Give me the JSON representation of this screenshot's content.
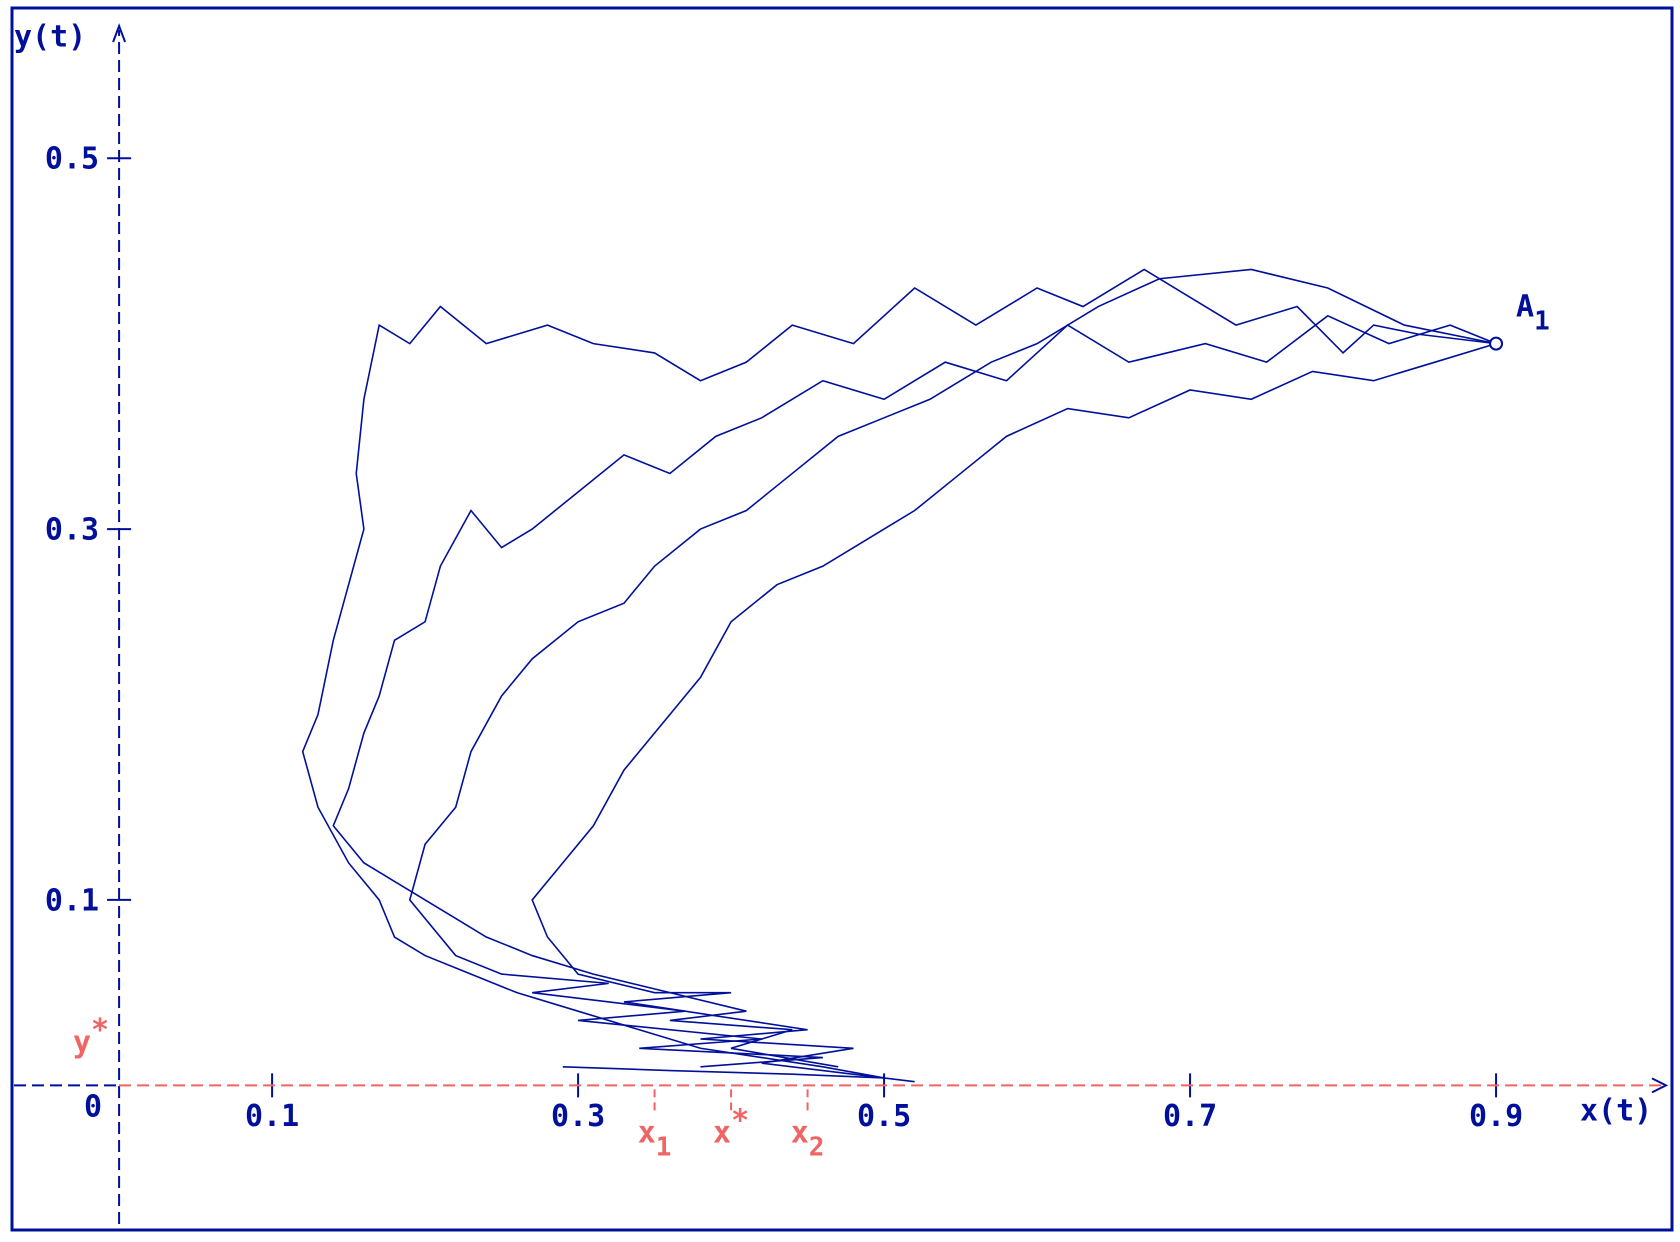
{
  "chart_data": {
    "type": "line",
    "x_label": "x(t)",
    "y_label": "y(t)",
    "origin_label": "0",
    "color": "#00109a",
    "marker_color": "#f06464",
    "xlim": [
      -0.07,
      1.015
    ],
    "ylim": [
      -0.078,
      0.581
    ],
    "xticks": [
      0.1,
      0.3,
      0.5,
      0.7,
      0.9
    ],
    "yticks": [
      0.1,
      0.3,
      0.5
    ],
    "x_markers": [
      {
        "value": 0.35,
        "text": "x",
        "sub": "1"
      },
      {
        "value": 0.4,
        "text": "x",
        "sup": "*"
      },
      {
        "value": 0.45,
        "text": "x",
        "sub": "2"
      }
    ],
    "y_marker": {
      "value": 0.01,
      "text": "y",
      "sup": "*"
    },
    "point": {
      "x": 0.9,
      "y": 0.4,
      "text": "A",
      "sub": "1"
    },
    "series": [
      {
        "x": [
          0.9,
          0.85,
          0.82,
          0.8,
          0.77,
          0.73,
          0.7,
          0.67,
          0.63,
          0.6,
          0.56,
          0.52,
          0.48,
          0.44,
          0.41,
          0.38,
          0.35,
          0.31,
          0.28,
          0.24,
          0.21,
          0.19,
          0.17,
          0.16,
          0.155,
          0.16,
          0.15,
          0.14,
          0.13,
          0.12,
          0.13,
          0.15,
          0.17,
          0.18,
          0.2,
          0.23,
          0.26,
          0.3,
          0.34,
          0.38,
          0.42,
          0.46,
          0.5,
          0.44,
          0.36,
          0.29
        ],
        "y": [
          0.4,
          0.405,
          0.41,
          0.395,
          0.42,
          0.41,
          0.425,
          0.44,
          0.42,
          0.43,
          0.41,
          0.43,
          0.4,
          0.41,
          0.39,
          0.38,
          0.395,
          0.4,
          0.41,
          0.4,
          0.42,
          0.4,
          0.41,
          0.37,
          0.33,
          0.3,
          0.27,
          0.24,
          0.2,
          0.18,
          0.15,
          0.12,
          0.1,
          0.08,
          0.07,
          0.06,
          0.05,
          0.04,
          0.03,
          0.02,
          0.015,
          0.01,
          0.004,
          0.006,
          0.008,
          0.01
        ]
      },
      {
        "x": [
          0.9,
          0.86,
          0.82,
          0.78,
          0.74,
          0.7,
          0.66,
          0.62,
          0.58,
          0.55,
          0.52,
          0.5,
          0.46,
          0.43,
          0.4,
          0.38,
          0.36,
          0.33,
          0.31,
          0.29,
          0.27,
          0.28,
          0.3,
          0.35,
          0.4,
          0.33,
          0.45,
          0.38,
          0.48,
          0.42,
          0.52
        ],
        "y": [
          0.4,
          0.39,
          0.38,
          0.385,
          0.37,
          0.375,
          0.36,
          0.365,
          0.35,
          0.33,
          0.31,
          0.3,
          0.28,
          0.27,
          0.25,
          0.22,
          0.2,
          0.17,
          0.14,
          0.12,
          0.1,
          0.08,
          0.06,
          0.05,
          0.05,
          0.045,
          0.03,
          0.025,
          0.02,
          0.012,
          0.002
        ]
      },
      {
        "x": [
          0.9,
          0.84,
          0.79,
          0.74,
          0.68,
          0.64,
          0.6,
          0.57,
          0.53,
          0.5,
          0.47,
          0.44,
          0.41,
          0.38,
          0.35,
          0.33,
          0.3,
          0.27,
          0.25,
          0.23,
          0.22,
          0.2,
          0.19,
          0.2,
          0.22,
          0.25,
          0.32,
          0.27,
          0.37,
          0.3,
          0.42,
          0.34,
          0.46,
          0.38
        ],
        "y": [
          0.4,
          0.41,
          0.43,
          0.44,
          0.435,
          0.42,
          0.4,
          0.39,
          0.37,
          0.36,
          0.35,
          0.33,
          0.31,
          0.3,
          0.28,
          0.26,
          0.25,
          0.23,
          0.21,
          0.18,
          0.15,
          0.13,
          0.1,
          0.09,
          0.07,
          0.06,
          0.055,
          0.05,
          0.04,
          0.035,
          0.025,
          0.02,
          0.015,
          0.01
        ]
      },
      {
        "x": [
          0.9,
          0.87,
          0.83,
          0.79,
          0.75,
          0.71,
          0.66,
          0.62,
          0.58,
          0.54,
          0.5,
          0.46,
          0.42,
          0.39,
          0.36,
          0.33,
          0.3,
          0.27,
          0.25,
          0.23,
          0.21,
          0.2,
          0.18,
          0.17,
          0.16,
          0.15,
          0.14,
          0.16,
          0.18,
          0.2,
          0.22,
          0.24,
          0.27,
          0.31,
          0.36,
          0.41,
          0.36,
          0.44,
          0.4,
          0.47
        ],
        "y": [
          0.4,
          0.41,
          0.4,
          0.415,
          0.39,
          0.4,
          0.39,
          0.41,
          0.38,
          0.39,
          0.37,
          0.38,
          0.36,
          0.35,
          0.33,
          0.34,
          0.32,
          0.3,
          0.29,
          0.31,
          0.28,
          0.25,
          0.24,
          0.21,
          0.19,
          0.16,
          0.14,
          0.12,
          0.11,
          0.1,
          0.09,
          0.08,
          0.07,
          0.06,
          0.05,
          0.04,
          0.035,
          0.03,
          0.02,
          0.01
        ]
      }
    ]
  }
}
